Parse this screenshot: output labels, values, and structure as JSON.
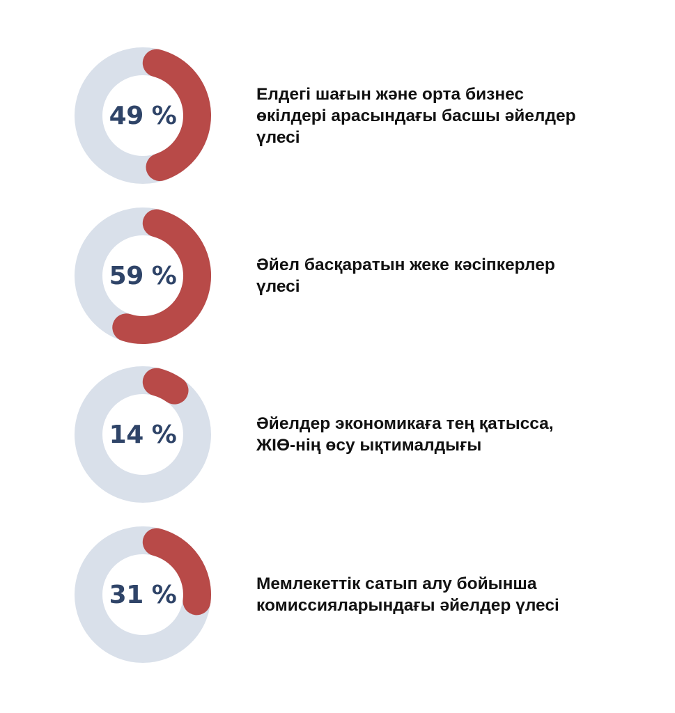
{
  "colors": {
    "track": "#d9e0ea",
    "fill": "#b84a48",
    "value_text": "#2f4468",
    "label_text": "#111111"
  },
  "chart_data": [
    {
      "type": "pie",
      "variant": "donut",
      "value": 49,
      "max": 100,
      "value_label": "49 %",
      "label": "Елдегі шағын және орта бизнес өкілдері арасындағы басшы әйелдер үлесі"
    },
    {
      "type": "pie",
      "variant": "donut",
      "value": 59,
      "max": 100,
      "value_label": "59 %",
      "label": "Әйел басқаратын жеке кәсіпкерлер үлесі"
    },
    {
      "type": "pie",
      "variant": "donut",
      "value": 14,
      "max": 100,
      "value_label": "14 %",
      "label": "Әйелдер экономикаға тең қатысса, ЖІӨ-нің өсу ықтималдығы"
    },
    {
      "type": "pie",
      "variant": "donut",
      "value": 31,
      "max": 100,
      "value_label": "31 %",
      "label": "Мемлекеттік сатып алу бойынша комиссияларындағы әйелдер үлесі"
    }
  ]
}
